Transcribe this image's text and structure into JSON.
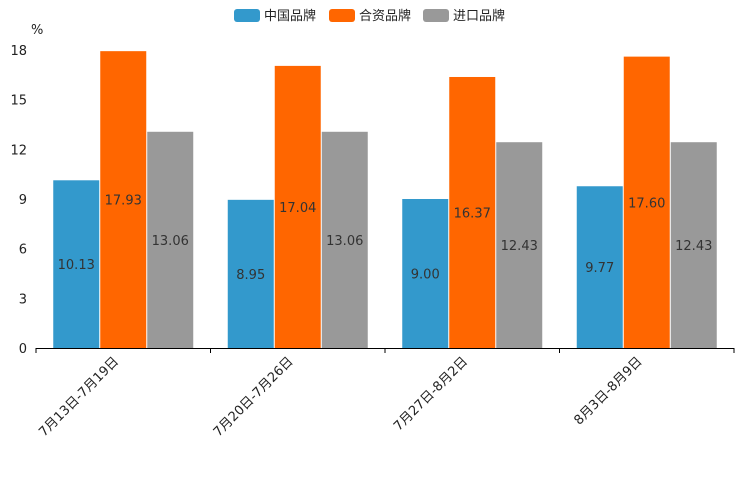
{
  "chart_data": {
    "type": "bar",
    "unit": "%",
    "categories": [
      "7月13日-7月19日",
      "7月20日-7月26日",
      "7月27日-8月2日",
      "8月3日-8月9日"
    ],
    "series": [
      {
        "name": "中国品牌",
        "color": "#3399cc",
        "values": [
          10.13,
          8.95,
          9.0,
          9.77
        ],
        "labels": [
          "10.13",
          "8.95",
          "9.00",
          "9.77"
        ]
      },
      {
        "name": "合资品牌",
        "color": "#ff6600",
        "values": [
          17.93,
          17.04,
          16.37,
          17.6
        ],
        "labels": [
          "17.93",
          "17.04",
          "16.37",
          "17.60"
        ]
      },
      {
        "name": "进口品牌",
        "color": "#999999",
        "values": [
          13.06,
          13.06,
          12.43,
          12.43
        ],
        "labels": [
          "13.06",
          "13.06",
          "12.43",
          "12.43"
        ]
      }
    ],
    "ylim": [
      0,
      18
    ],
    "yticks": [
      0,
      3,
      6,
      9,
      12,
      15,
      18
    ],
    "legend_position": "top-center",
    "grid": false
  }
}
